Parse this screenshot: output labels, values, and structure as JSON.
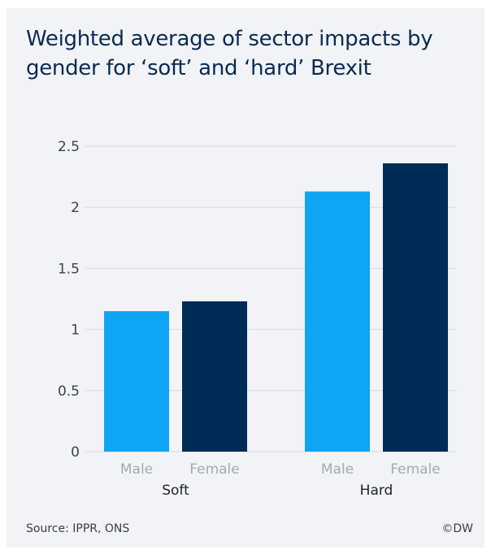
{
  "header": {
    "title": "Weighted average of sector impacts by gender for ‘soft’ and ‘hard’ Brexit"
  },
  "footer": {
    "source": "Source: IPPR, ONS",
    "credit": "©DW"
  },
  "colors": {
    "male": "#0ea5f4",
    "female": "#002b57",
    "grid": "#d6dae0",
    "background": "#f1f3f6"
  },
  "chart_data": {
    "type": "bar",
    "title": "Weighted average of sector impacts by gender for ‘soft’ and ‘hard’ Brexit",
    "xlabel": "",
    "ylabel": "",
    "ylim": [
      0,
      2.5
    ],
    "yticks": [
      "0",
      "0.5",
      "1",
      "1.5",
      "2",
      "2.5"
    ],
    "grid": true,
    "legend": "none",
    "groups": [
      "Soft",
      "Hard"
    ],
    "series": [
      {
        "name": "Male",
        "values": [
          1.15,
          2.13
        ]
      },
      {
        "name": "Female",
        "values": [
          1.23,
          2.36
        ]
      }
    ]
  }
}
